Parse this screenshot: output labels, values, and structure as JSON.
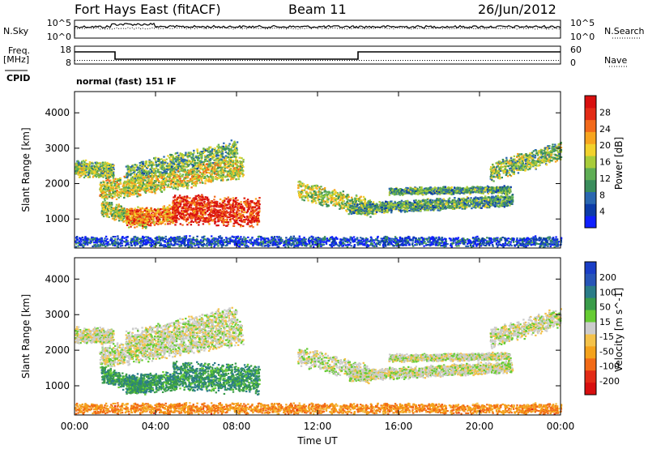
{
  "header": {
    "station": "Fort Hays East (fitACF)",
    "beam": "Beam 11",
    "date": "26/Jun/2012"
  },
  "side_labels": {
    "nsky": "N.Sky",
    "nsearch": "N.Search",
    "freq": "Freq.",
    "freq_unit": "[MHz]",
    "nave": "Nave",
    "cpid": "CPID",
    "cpid_value": "normal (fast) 151 IF"
  },
  "colors": {
    "panel_border": "#000000",
    "freq_line": "#000000"
  },
  "chart_data": [
    {
      "type": "line",
      "name": "noise",
      "left_axis_label": "N.Sky",
      "right_axis_label": "N.Search",
      "left_ticks": [
        "10^5",
        "10^0"
      ],
      "right_ticks": [
        "10^5",
        "10^0"
      ],
      "series_style": [
        "solid",
        "dotted"
      ],
      "note": "noise traces near the top of the panel throughout the day"
    },
    {
      "type": "line",
      "name": "frequency",
      "left_axis_label": "Freq. [MHz]",
      "left_ticks": [
        "18",
        "8"
      ],
      "right_axis_label": "Nave",
      "right_ticks": [
        "60",
        "0"
      ],
      "freq_steps": [
        {
          "start_ut": 0.0,
          "end_ut": 2.0,
          "level": "high"
        },
        {
          "start_ut": 2.0,
          "end_ut": 14.0,
          "level": "low"
        },
        {
          "start_ut": 14.0,
          "end_ut": 24.0,
          "level": "high"
        }
      ],
      "nave": "dotted near low level"
    },
    {
      "type": "heatmap",
      "name": "power",
      "ylabel": "Slant Range [km]",
      "yticks": [
        1000,
        2000,
        3000,
        4000
      ],
      "ylim": [
        180,
        4600
      ],
      "xlim_ut": [
        0,
        24
      ],
      "colorbar_label": "Power [dB]",
      "colorbar_ticks": [
        4,
        8,
        12,
        16,
        20,
        24,
        28
      ],
      "colorbar_colors": [
        "#1020ff",
        "#0d3ca8",
        "#2a67b0",
        "#3a8d5c",
        "#5fae55",
        "#a8cc3a",
        "#f2d22d",
        "#f7a51f",
        "#f26a1b",
        "#e32b16",
        "#d80f0f"
      ]
    },
    {
      "type": "heatmap",
      "name": "velocity",
      "ylabel": "Slant Range [km]",
      "yticks": [
        1000,
        2000,
        3000,
        4000
      ],
      "ylim": [
        180,
        4600
      ],
      "xlim_ut": [
        0,
        24
      ],
      "colorbar_label": "Velocity [m s^-1]",
      "colorbar_ticks": [
        200,
        100,
        50,
        15,
        -15,
        -50,
        -100,
        -200
      ],
      "colorbar_colors": [
        "#1a3ec6",
        "#2755b8",
        "#2a7c88",
        "#3a9c4a",
        "#66cc33",
        "#cccccc",
        "#f4c24a",
        "#f4a21c",
        "#f26a16",
        "#e32b16",
        "#d80f0f"
      ]
    }
  ],
  "xaxis": {
    "label": "Time UT",
    "ticks": [
      "00:00",
      "04:00",
      "08:00",
      "12:00",
      "16:00",
      "20:00",
      "00:00"
    ]
  }
}
